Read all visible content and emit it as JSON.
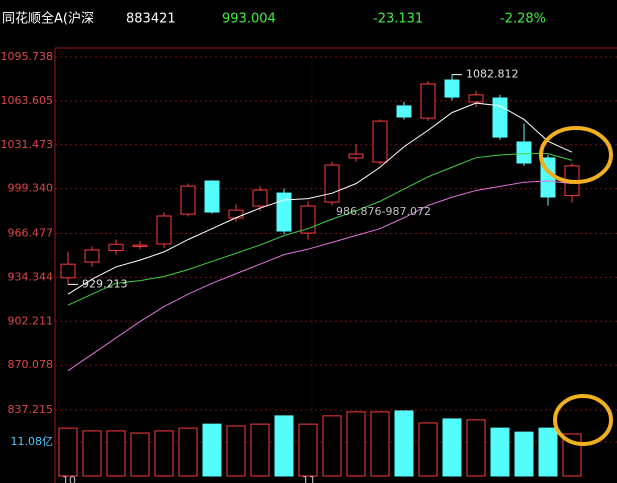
{
  "header": {
    "name": "同花顺全A(沪深",
    "code": "883421",
    "price": "993.004",
    "change": "-23.131",
    "percent": "-2.28%"
  },
  "chart_data": {
    "type": "candlestick",
    "categories": [
      "10",
      null,
      null,
      null,
      null,
      null,
      null,
      null,
      null,
      null,
      "11",
      null,
      null,
      null,
      null,
      null,
      null,
      null,
      null,
      null,
      null,
      null
    ],
    "open": [
      934,
      945.6,
      954,
      957,
      958.8,
      980.7,
      1004.9,
      977.8,
      986.6,
      996.1,
      966.8,
      989.5,
      1021.8,
      1018.8,
      1059.9,
      1051,
      1078.9,
      1062.8,
      1065.7,
      1033.5,
      1021.8,
      994.2
    ],
    "close": [
      944,
      954.4,
      958.6,
      958,
      979.3,
      1001.2,
      982.2,
      983.6,
      998.3,
      968.3,
      986.6,
      1016.6,
      1024.6,
      1048.8,
      1051.8,
      1076,
      1066.4,
      1068,
      1037.1,
      1018.1,
      993.2,
      1016
    ],
    "high": [
      953,
      957,
      962,
      961,
      982,
      1003,
      1005.5,
      988,
      1001,
      999.5,
      990,
      1019,
      1032,
      1050,
      1063,
      1078,
      1082.812,
      1071,
      1068,
      1047,
      1024,
      1018
    ],
    "low": [
      929.213,
      942,
      951,
      955,
      956,
      979,
      981,
      975,
      983,
      966,
      962,
      987,
      1019,
      1017,
      1050,
      1049,
      1064,
      1059,
      1035,
      1016,
      986.876,
      989
    ],
    "up_color": "#ff3c3c",
    "down_color": "#54fcfc",
    "ma": [
      {
        "color": "#ffffff",
        "values": [
          922,
          933,
          942,
          947,
          953,
          962,
          970,
          978,
          985,
          991,
          992,
          996,
          1003,
          1015,
          1030,
          1042,
          1055,
          1062,
          1060,
          1050,
          1034,
          1026
        ]
      },
      {
        "color": "#3fd23f",
        "values": [
          914,
          922,
          930,
          932,
          935,
          940,
          946,
          952,
          958,
          965,
          970,
          977,
          983,
          990,
          999,
          1008,
          1015,
          1022,
          1024,
          1025,
          1025,
          1020
        ]
      },
      {
        "color": "#e070e0",
        "values": [
          866,
          878,
          890,
          902,
          913,
          922,
          930,
          937,
          944,
          951,
          955,
          960,
          965,
          970,
          978,
          987,
          993,
          998,
          1001,
          1004,
          1005,
          1003
        ]
      }
    ],
    "ylim": [
      837.215,
      1095.738
    ],
    "yticks": [
      1095.738,
      1063.605,
      1031.473,
      {
        "value": 999.34,
        "label": "999.340"
      },
      966.477,
      934.344,
      902.211,
      870.078,
      837.215
    ],
    "annotations": [
      "1082.812",
      "929.213",
      "986.876-987.072"
    ],
    "volume": {
      "values": [
        15.6,
        14.7,
        14.7,
        14.0,
        14.7,
        15.6,
        16.9,
        16.3,
        16.9,
        19.6,
        16.9,
        19.6,
        20.9,
        20.9,
        21.2,
        17.3,
        18.6,
        18.3,
        15.6,
        14.3,
        15.6,
        13.7
      ],
      "ylim": [
        0,
        22.16
      ],
      "yticks": [
        {
          "value": 11.08,
          "label": "11.08亿"
        }
      ]
    }
  }
}
